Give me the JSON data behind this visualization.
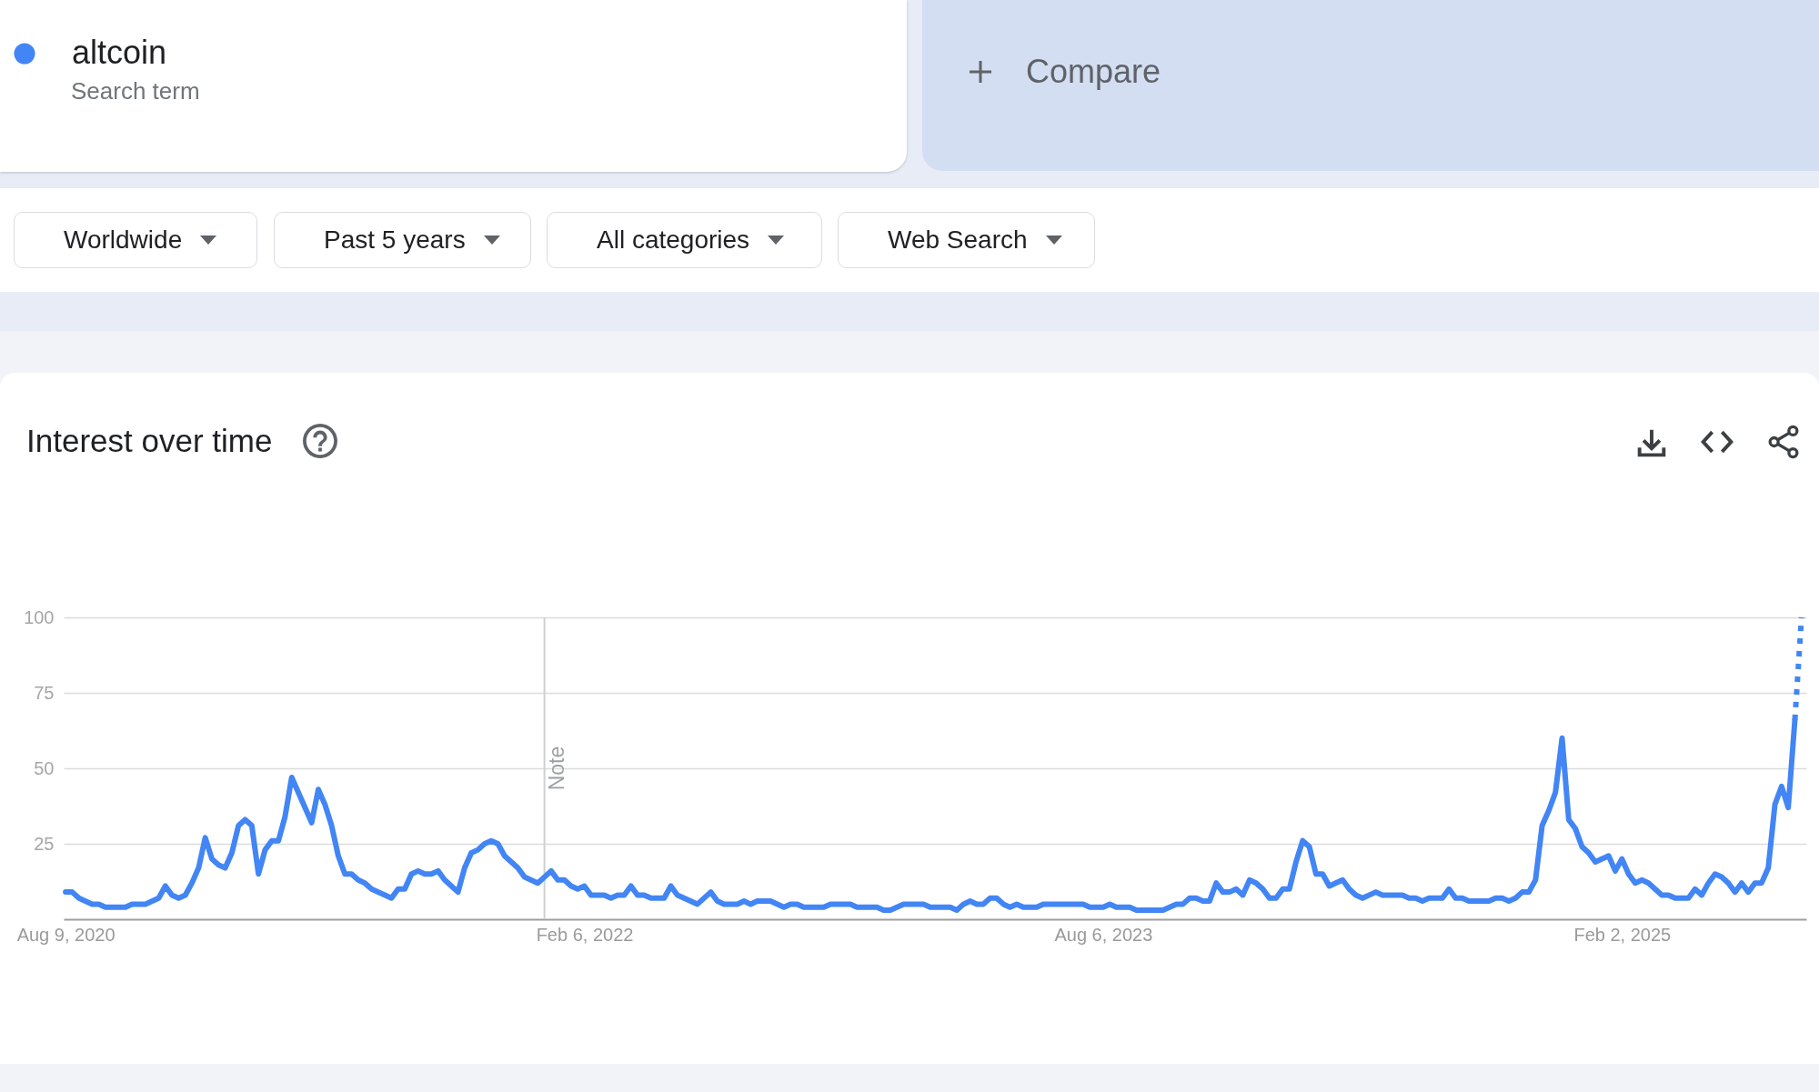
{
  "chart_data": {
    "type": "line",
    "title": "Interest over time",
    "annotations": [
      "Search term",
      "Compare",
      "Worldwide",
      "Past 5 years",
      "All categories",
      "Web Search"
    ],
    "xlim": [
      "2020-08-07",
      "2025-08-15"
    ],
    "xticks": [
      {
        "value": "2020-08-09",
        "label": "Aug 9, 2020"
      },
      {
        "value": "2022-02-06",
        "label": "Feb 6, 2022"
      },
      {
        "value": "2023-08-06",
        "label": "Aug 6, 2023"
      },
      {
        "value": "2025-02-02",
        "label": "Feb 2, 2025"
      }
    ],
    "ylim": [
      0,
      100
    ],
    "yticks": [
      25,
      50,
      75,
      100
    ],
    "grid": "y",
    "legend": "top left",
    "ref_lines": [
      {
        "axis": "x",
        "value": "2021-12-26",
        "label": "Note",
        "color": "#d0d0d0"
      }
    ],
    "series": [
      {
        "name": "altcoin",
        "color": "#4285f4",
        "x": [
          "2020-08-09",
          "2020-08-16",
          "2020-08-23",
          "2020-09-06",
          "2020-09-13",
          "2020-09-20",
          "2020-10-11",
          "2020-10-18",
          "2020-11-01",
          "2020-11-15",
          "2020-11-22",
          "2020-11-29",
          "2020-12-06",
          "2020-12-13",
          "2020-12-20",
          "2020-12-27",
          "2021-01-03",
          "2021-01-10",
          "2021-01-17",
          "2021-01-24",
          "2021-01-31",
          "2021-02-07",
          "2021-02-14",
          "2021-02-21",
          "2021-02-28",
          "2021-03-07",
          "2021-03-14",
          "2021-03-21",
          "2021-03-28",
          "2021-04-04",
          "2021-04-25",
          "2021-05-02",
          "2021-05-09",
          "2021-05-16",
          "2021-05-23",
          "2021-05-30",
          "2021-06-06",
          "2021-06-13",
          "2021-06-20",
          "2021-06-27",
          "2021-07-18",
          "2021-07-25",
          "2021-08-01",
          "2021-08-08",
          "2021-08-15",
          "2021-08-22",
          "2021-08-29",
          "2021-09-05",
          "2021-09-12",
          "2021-09-26",
          "2021-10-03",
          "2021-10-10",
          "2021-10-17",
          "2021-10-24",
          "2021-10-31",
          "2021-11-07",
          "2021-11-14",
          "2021-11-28",
          "2021-12-05",
          "2021-12-19",
          "2022-01-02",
          "2022-01-09",
          "2022-01-16",
          "2022-01-23",
          "2022-01-30",
          "2022-02-06",
          "2022-02-13",
          "2022-02-27",
          "2022-03-06",
          "2022-03-13",
          "2022-03-20",
          "2022-03-27",
          "2022-04-03",
          "2022-04-10",
          "2022-04-17",
          "2022-05-01",
          "2022-05-08",
          "2022-05-15",
          "2022-06-05",
          "2022-06-19",
          "2022-06-26",
          "2022-07-03",
          "2022-07-17",
          "2022-07-24",
          "2022-07-31",
          "2022-08-07",
          "2022-08-21",
          "2022-09-04",
          "2022-09-11",
          "2022-09-18",
          "2022-09-25",
          "2022-10-16",
          "2022-10-23",
          "2022-11-13",
          "2022-11-20",
          "2022-12-11",
          "2022-12-18",
          "2022-12-25",
          "2023-01-08",
          "2023-01-29",
          "2023-02-05",
          "2023-02-26",
          "2023-03-05",
          "2023-03-12",
          "2023-03-19",
          "2023-03-26",
          "2023-04-02",
          "2023-04-09",
          "2023-04-16",
          "2023-04-23",
          "2023-04-30",
          "2023-05-07",
          "2023-05-14",
          "2023-05-28",
          "2023-06-04",
          "2023-07-16",
          "2023-07-23",
          "2023-08-06",
          "2023-08-13",
          "2023-08-20",
          "2023-09-03",
          "2023-09-10",
          "2023-10-08",
          "2023-10-22",
          "2023-10-29",
          "2023-11-05",
          "2023-11-12",
          "2023-11-19",
          "2023-11-26",
          "2023-12-03",
          "2023-12-10",
          "2023-12-17",
          "2023-12-24",
          "2023-12-31",
          "2024-01-07",
          "2024-01-14",
          "2024-01-21",
          "2024-01-28",
          "2024-02-04",
          "2024-02-11",
          "2024-02-18",
          "2024-02-25",
          "2024-03-03",
          "2024-03-10",
          "2024-03-17",
          "2024-03-24",
          "2024-03-31",
          "2024-04-14",
          "2024-04-21",
          "2024-04-28",
          "2024-05-05",
          "2024-05-19",
          "2024-05-26",
          "2024-06-16",
          "2024-06-23",
          "2024-06-30",
          "2024-07-07",
          "2024-07-14",
          "2024-07-28",
          "2024-08-04",
          "2024-08-11",
          "2024-08-18",
          "2024-08-25",
          "2024-09-15",
          "2024-09-22",
          "2024-09-29",
          "2024-10-06",
          "2024-10-13",
          "2024-10-20",
          "2024-10-27",
          "2024-11-03",
          "2024-11-10",
          "2024-11-17",
          "2024-11-24",
          "2024-12-01",
          "2024-12-08",
          "2024-12-15",
          "2024-12-22",
          "2024-12-29",
          "2025-01-05",
          "2025-01-19",
          "2025-01-26",
          "2025-02-02",
          "2025-02-09",
          "2025-02-16",
          "2025-02-23",
          "2025-03-02",
          "2025-03-16",
          "2025-03-23",
          "2025-03-30",
          "2025-04-13",
          "2025-04-20",
          "2025-04-27",
          "2025-05-04",
          "2025-05-11",
          "2025-05-18",
          "2025-05-25",
          "2025-06-01",
          "2025-06-08",
          "2025-06-15",
          "2025-06-22",
          "2025-06-29",
          "2025-07-06",
          "2025-07-13",
          "2025-07-20",
          "2025-07-27",
          "2025-08-03"
        ],
        "values": [
          9,
          9,
          7,
          5,
          5,
          4,
          4,
          5,
          5,
          7,
          11,
          8,
          7,
          8,
          12,
          17,
          27,
          20,
          18,
          17,
          22,
          31,
          33,
          31,
          15,
          23,
          26,
          26,
          34,
          47,
          32,
          43,
          38,
          31,
          21,
          15,
          15,
          13,
          12,
          10,
          7,
          10,
          10,
          15,
          16,
          15,
          15,
          16,
          13,
          9,
          17,
          22,
          23,
          25,
          26,
          25,
          21,
          17,
          14,
          12,
          16,
          13,
          13,
          11,
          10,
          11,
          8,
          8,
          7,
          8,
          8,
          11,
          8,
          8,
          7,
          7,
          11,
          8,
          5,
          9,
          6,
          5,
          5,
          6,
          5,
          6,
          6,
          4,
          5,
          5,
          4,
          4,
          5,
          5,
          4,
          4,
          3,
          3,
          5,
          5,
          4,
          4,
          3,
          5,
          6,
          5,
          5,
          7,
          7,
          5,
          4,
          5,
          4,
          4,
          5,
          5,
          4,
          4,
          5,
          4,
          4,
          3,
          3,
          5,
          5,
          7,
          7,
          6,
          6,
          12,
          9,
          9,
          10,
          8,
          13,
          12,
          10,
          7,
          7,
          10,
          10,
          19,
          26,
          24,
          15,
          15,
          11,
          13,
          10,
          8,
          7,
          9,
          8,
          8,
          7,
          7,
          6,
          7,
          7,
          10,
          7,
          7,
          6,
          6,
          7,
          7,
          6,
          7,
          9,
          9,
          13,
          31,
          36,
          42,
          60,
          33,
          30,
          24,
          22,
          19,
          21,
          16,
          20,
          15,
          12,
          13,
          12,
          8,
          8,
          7,
          7,
          10,
          8,
          12,
          15,
          14,
          12,
          9,
          12,
          9,
          12,
          12,
          17,
          38,
          44,
          37,
          66
        ]
      },
      {
        "color": "#4285f4",
        "line_style": "dotted",
        "x": [
          "2025-08-03",
          "2025-08-10"
        ],
        "values": [
          66,
          100
        ]
      }
    ]
  }
}
